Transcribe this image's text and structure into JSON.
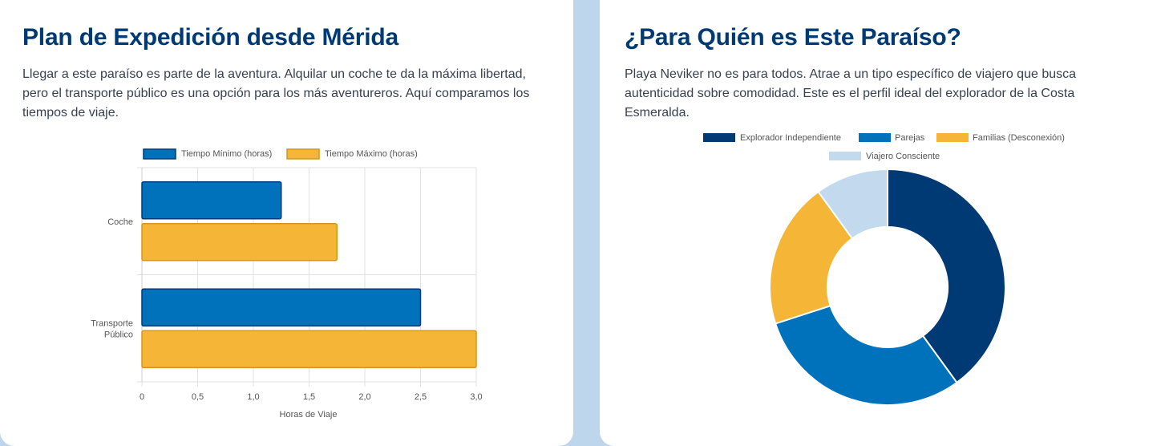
{
  "left_panel": {
    "title": "Plan de Expedición desde Mérida",
    "description": "Llegar a este paraíso es parte de la aventura. Alquilar un coche te da la máxima libertad, pero el transporte público es una opción para los más aventureros. Aquí comparamos los tiempos de viaje."
  },
  "right_panel": {
    "title": "¿Para Quién es Este Paraíso?",
    "description": "Playa Neviker no es para todos. Atrae a un tipo específico de viajero que busca autenticidad sobre comodidad. Este es el perfil ideal del explorador de la Costa Esmeralda."
  },
  "chart_data": [
    {
      "type": "bar",
      "orientation": "horizontal",
      "categories": [
        [
          "Coche"
        ],
        [
          "Transporte",
          "Público"
        ]
      ],
      "series": [
        {
          "name": "Tiempo Mínimo (horas)",
          "values": [
            1.25,
            2.5
          ],
          "color": "#0072bb",
          "border": "#003a75"
        },
        {
          "name": "Tiempo Máximo (horas)",
          "values": [
            1.75,
            3.0
          ],
          "color": "#f5b537",
          "border": "#d4961e"
        }
      ],
      "xlabel": "Horas de Viaje",
      "xlim": [
        0,
        3
      ],
      "xticks": [
        "0",
        "0,5",
        "1,0",
        "1,5",
        "2,0",
        "2,5",
        "3,0"
      ],
      "grid": true,
      "legend": "top"
    },
    {
      "type": "pie",
      "variant": "doughnut",
      "labels": [
        "Explorador Independiente",
        "Parejas",
        "Familias (Desconexión)",
        "Viajero Consciente"
      ],
      "values": [
        40,
        30,
        20,
        10
      ],
      "colors": [
        "#003a75",
        "#0072bb",
        "#f5b537",
        "#c2d9ee"
      ],
      "legend": "top"
    }
  ]
}
